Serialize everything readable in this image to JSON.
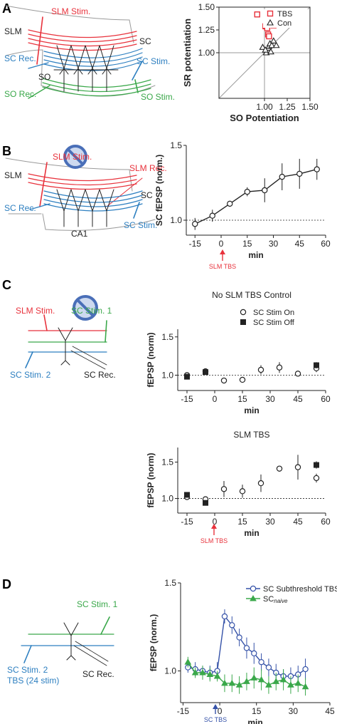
{
  "colors": {
    "red": "#e8323c",
    "blue": "#2d7fc0",
    "green": "#3aa84a",
    "black": "#222222",
    "gray": "#9a9a9a",
    "navy": "#3552a8",
    "sign": "#4a6fb8"
  },
  "panels": {
    "A": {
      "letter": "A",
      "diagram": {
        "slm": "SLM",
        "slm_stim": "SLM Stim.",
        "sc": "SC",
        "sc_rec": "SC Rec.",
        "sc_stim": "SC Stim.",
        "so": "SO",
        "so_rec": "SO Rec.",
        "so_stim": "SO Stim."
      }
    },
    "B": {
      "letter": "B",
      "diagram": {
        "slm": "SLM",
        "slm_stim": "SLM Stim.",
        "slm_rec": "SLM Rec.",
        "sc": "SC",
        "sc_rec": "SC Rec.",
        "sc_stim": "SC Stim.",
        "ca1": "CA1",
        "prohibit_icon": "no-sign-icon"
      },
      "arrow_label": "SLM TBS"
    },
    "C": {
      "letter": "C",
      "diagram": {
        "slm_stim": "SLM Stim.",
        "sc_stim1": "SC Stim. 1",
        "sc_stim2": "SC Stim. 2",
        "sc_rec": "SC Rec.",
        "prohibit_icon": "no-sign-icon"
      },
      "arrow_label": "SLM TBS"
    },
    "D": {
      "letter": "D",
      "diagram": {
        "sc_stim1": "SC Stim. 1",
        "sc_stim2": "SC Stim. 2",
        "tbs_note": "TBS (24 stim)",
        "sc_rec": "SC Rec."
      },
      "arrow_label": "SC TBS",
      "legend_naive_base": "SC",
      "legend_naive_sub": "naive"
    }
  },
  "chart_data": [
    {
      "id": "A",
      "type": "scatter",
      "title": "",
      "xlabel": "SO Potentiation",
      "ylabel": "SR potentiation",
      "xlim": [
        0.5,
        1.5
      ],
      "ylim": [
        0.5,
        1.5
      ],
      "xticks": [
        "1.00",
        "1.25",
        "1.50"
      ],
      "yticks": [
        "1.00",
        "1.25",
        "1.50"
      ],
      "legend": "top-right",
      "series": [
        {
          "name": "TBS",
          "marker": "open-square",
          "color": "#e8323c",
          "points": [
            [
              0.92,
              1.42
            ],
            [
              1.01,
              1.29
            ],
            [
              1.02,
              1.3
            ],
            [
              1.03,
              1.28
            ],
            [
              1.04,
              1.31
            ],
            [
              1.03,
              1.27
            ],
            [
              1.04,
              1.2
            ],
            [
              1.05,
              1.18
            ],
            [
              1.1,
              1.3
            ]
          ]
        },
        {
          "name": "Con",
          "marker": "open-triangle",
          "color": "#222222",
          "points": [
            [
              0.98,
              1.06
            ],
            [
              1.02,
              1.0
            ],
            [
              1.04,
              1.05
            ],
            [
              1.05,
              1.07
            ],
            [
              1.06,
              1.1
            ],
            [
              1.08,
              1.08
            ],
            [
              1.1,
              1.13
            ],
            [
              1.13,
              1.08
            ],
            [
              1.07,
              1.01
            ],
            [
              1.01,
              1.03
            ]
          ]
        }
      ]
    },
    {
      "id": "B",
      "type": "line",
      "title": "",
      "xlabel": "min",
      "ylabel": "SC fEPSP (norm.)",
      "xlim": [
        -20,
        60
      ],
      "ylim": [
        0.9,
        1.5
      ],
      "xticks": [
        "-15",
        "0",
        "15",
        "30",
        "45",
        "60"
      ],
      "yticks": [
        "1.0",
        "1.5"
      ],
      "baseline": 1.0,
      "series": [
        {
          "name": "",
          "marker": "open-circle",
          "color": "#222222",
          "x": [
            -15,
            -5,
            5,
            15,
            25,
            35,
            45,
            55
          ],
          "y": [
            0.975,
            1.03,
            1.11,
            1.19,
            1.2,
            1.29,
            1.31,
            1.34
          ],
          "err": [
            0.04,
            0.04,
            0.02,
            0.03,
            0.08,
            0.09,
            0.1,
            0.07
          ]
        }
      ]
    },
    {
      "id": "C1",
      "type": "scatter",
      "title": "No SLM TBS Control",
      "xlabel": "min",
      "ylabel": "fEPSP (norm)",
      "xlim": [
        -20,
        60
      ],
      "ylim": [
        0.8,
        1.6
      ],
      "xticks": [
        "-15",
        "0",
        "15",
        "30",
        "45",
        "60"
      ],
      "yticks": [
        "1.0",
        "1.5"
      ],
      "baseline": 1.0,
      "legend": "top-right",
      "series": [
        {
          "name": "SC Stim On",
          "marker": "open-circle",
          "color": "#222222",
          "x": [
            -15,
            -5,
            5,
            15,
            25,
            35,
            45,
            55
          ],
          "y": [
            1.0,
            1.05,
            0.93,
            0.94,
            1.07,
            1.1,
            1.02,
            1.09
          ],
          "err": [
            0.03,
            0.04,
            0.02,
            0.02,
            0.06,
            0.07,
            0.03,
            0.05
          ]
        },
        {
          "name": "SC Stim Off",
          "marker": "filled-square",
          "color": "#222222",
          "x": [
            -15,
            -5,
            55
          ],
          "y": [
            0.98,
            1.04,
            1.13
          ],
          "err": [
            0.02,
            0.02,
            0.04
          ]
        }
      ]
    },
    {
      "id": "C2",
      "type": "scatter",
      "title": "SLM TBS",
      "xlabel": "min",
      "ylabel": "fEPSP (norm)",
      "xlim": [
        -20,
        60
      ],
      "ylim": [
        0.8,
        1.7
      ],
      "xticks": [
        "-15",
        "0",
        "15",
        "30",
        "45",
        "60"
      ],
      "yticks": [
        "1.0",
        "1.5"
      ],
      "baseline": 1.0,
      "series": [
        {
          "name": "SC Stim On",
          "marker": "open-circle",
          "color": "#222222",
          "x": [
            -15,
            -5,
            5,
            15,
            25,
            35,
            45,
            55
          ],
          "y": [
            1.02,
            0.99,
            1.13,
            1.1,
            1.21,
            1.41,
            1.43,
            1.28
          ],
          "err": [
            0.03,
            0.04,
            0.11,
            0.09,
            0.12,
            0.04,
            0.17,
            0.06
          ]
        },
        {
          "name": "SC Stim Off",
          "marker": "filled-square",
          "color": "#222222",
          "x": [
            -15,
            -5,
            55
          ],
          "y": [
            1.05,
            0.94,
            1.46
          ],
          "err": [
            0.02,
            0.02,
            0.05
          ]
        }
      ]
    },
    {
      "id": "D",
      "type": "line",
      "title": "",
      "xlabel": "min",
      "ylabel": "fEPSP (norm.)",
      "xlim": [
        -16,
        45
      ],
      "ylim": [
        0.82,
        1.5
      ],
      "xticks": [
        "-15",
        "0",
        "15",
        "30",
        "45"
      ],
      "yticks": [
        "1.0",
        "1.5"
      ],
      "legend": "top-right",
      "series": [
        {
          "name": "SC Subthreshold TBS",
          "marker": "open-circle",
          "color": "#3552a8",
          "x": [
            -13,
            -10,
            -7,
            -4,
            -1,
            2,
            5,
            8,
            11,
            14,
            17,
            20,
            23,
            26,
            29,
            32,
            35
          ],
          "y": [
            1.02,
            1.01,
            1.0,
            0.99,
            1.0,
            1.31,
            1.26,
            1.19,
            1.13,
            1.1,
            1.05,
            1.02,
            0.99,
            0.97,
            0.97,
            0.98,
            1.01
          ],
          "err": [
            0.03,
            0.04,
            0.03,
            0.04,
            0.05,
            0.04,
            0.05,
            0.05,
            0.06,
            0.06,
            0.05,
            0.05,
            0.05,
            0.04,
            0.05,
            0.05,
            0.06
          ]
        },
        {
          "name": "naive",
          "marker": "filled-triangle",
          "color": "#3aa84a",
          "x": [
            -13,
            -10,
            -7,
            -4,
            -1,
            2,
            5,
            8,
            11,
            14,
            17,
            20,
            23,
            26,
            29,
            32,
            35
          ],
          "y": [
            1.05,
            0.99,
            0.99,
            0.98,
            0.97,
            0.93,
            0.93,
            0.92,
            0.94,
            0.96,
            0.95,
            0.92,
            0.94,
            0.95,
            0.92,
            0.93,
            0.91
          ],
          "err": [
            0.03,
            0.03,
            0.04,
            0.04,
            0.03,
            0.05,
            0.05,
            0.05,
            0.05,
            0.06,
            0.06,
            0.05,
            0.05,
            0.06,
            0.05,
            0.05,
            0.05
          ]
        }
      ]
    }
  ]
}
